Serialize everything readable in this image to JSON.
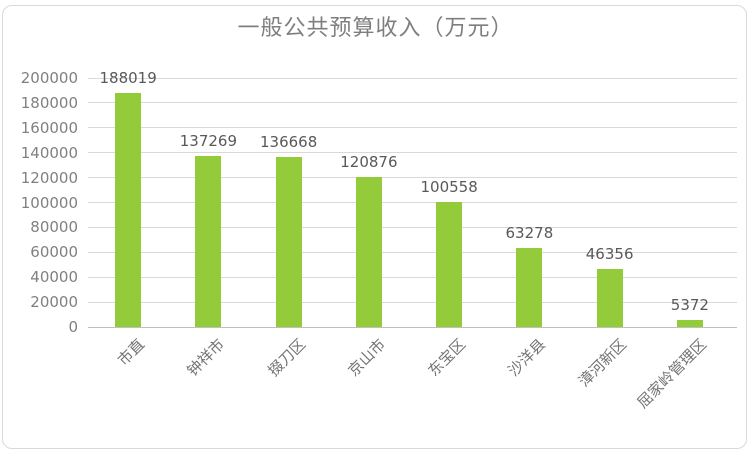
{
  "chart_data": {
    "type": "bar",
    "title": "一般公共预算收入（万元）",
    "categories": [
      "市直",
      "钟祥市",
      "掇刀区",
      "京山市",
      "东宝区",
      "沙洋县",
      "漳河新区",
      "屈家岭管理区"
    ],
    "values": [
      188019,
      137269,
      136668,
      120876,
      100558,
      63278,
      46356,
      5372
    ],
    "xlabel": "",
    "ylabel": "",
    "ylim": [
      0,
      200000
    ],
    "yticks": [
      0,
      20000,
      40000,
      60000,
      80000,
      100000,
      120000,
      140000,
      160000,
      180000,
      200000
    ],
    "grid": "horizontal",
    "legend": "none",
    "data_labels": true,
    "x_tick_rotation_deg": 45
  },
  "colors": {
    "bar": "#93cb3a",
    "title_text": "#7f7f7f",
    "axis_tick_text": "#808080",
    "category_text": "#737373",
    "data_label_text": "#595959",
    "gridline": "#d9d9d9",
    "axis_line": "#bfbfbf",
    "frame_border": "#d9d9d9",
    "background": "#ffffff"
  }
}
